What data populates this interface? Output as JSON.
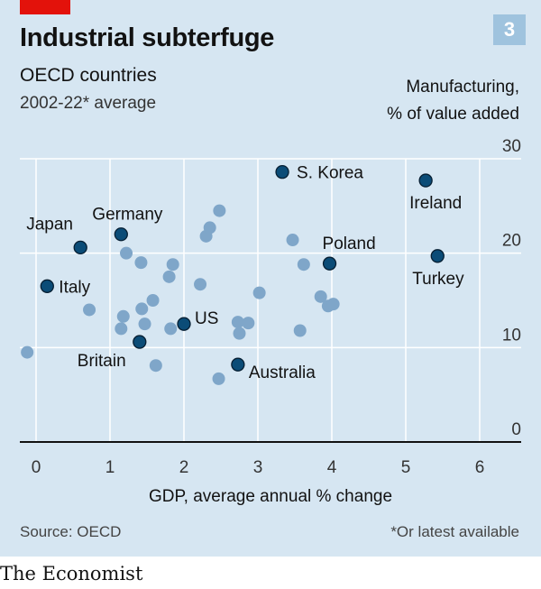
{
  "header": {
    "chart_number": "3",
    "title": "Industrial subterfuge",
    "subtitle": "OECD countries",
    "subtitle2": "2002-22* average"
  },
  "axes": {
    "ylabel_line1": "Manufacturing,",
    "ylabel_line2": "% of value added",
    "xlabel": "GDP, average annual % change"
  },
  "footer": {
    "source": "Source: OECD",
    "footnote": "*Or latest available",
    "brand": "The Economist"
  },
  "colors": {
    "background": "#d6e6f2",
    "highlight": "#0b4c77",
    "other": "#7fa6c9",
    "grid": "#ffffff",
    "accent": "#e3120b"
  },
  "chart_data": {
    "type": "scatter",
    "title": "Industrial subterfuge",
    "subtitle": "OECD countries, 2002-22* average",
    "xlabel": "GDP, average annual % change",
    "ylabel": "Manufacturing, % of value added",
    "xlim": [
      -0.2,
      6.4
    ],
    "ylim": [
      0,
      30
    ],
    "xticks": [
      0,
      1,
      2,
      3,
      4,
      5,
      6
    ],
    "yticks": [
      0,
      10,
      20,
      30
    ],
    "grid": true,
    "highlighted": [
      {
        "label": "S. Korea",
        "x": 3.33,
        "y": 28.6
      },
      {
        "label": "Ireland",
        "x": 5.27,
        "y": 27.7
      },
      {
        "label": "Germany",
        "x": 1.15,
        "y": 22.0
      },
      {
        "label": "Japan",
        "x": 0.6,
        "y": 20.6
      },
      {
        "label": "Poland",
        "x": 3.97,
        "y": 18.9
      },
      {
        "label": "Turkey",
        "x": 5.43,
        "y": 19.7
      },
      {
        "label": "Italy",
        "x": 0.15,
        "y": 16.5
      },
      {
        "label": "US",
        "x": 2.0,
        "y": 12.5
      },
      {
        "label": "Britain",
        "x": 1.4,
        "y": 10.6
      },
      {
        "label": "Australia",
        "x": 2.73,
        "y": 8.2
      }
    ],
    "others": [
      {
        "x": -0.12,
        "y": 9.5
      },
      {
        "x": 0.72,
        "y": 14.0
      },
      {
        "x": 1.22,
        "y": 20.0
      },
      {
        "x": 1.42,
        "y": 19.0
      },
      {
        "x": 1.18,
        "y": 13.3
      },
      {
        "x": 1.15,
        "y": 12.0
      },
      {
        "x": 1.43,
        "y": 14.1
      },
      {
        "x": 1.47,
        "y": 12.5
      },
      {
        "x": 1.58,
        "y": 15.0
      },
      {
        "x": 1.62,
        "y": 8.1
      },
      {
        "x": 1.8,
        "y": 17.5
      },
      {
        "x": 1.85,
        "y": 18.8
      },
      {
        "x": 1.82,
        "y": 12.0
      },
      {
        "x": 2.22,
        "y": 16.7
      },
      {
        "x": 2.3,
        "y": 21.8
      },
      {
        "x": 2.35,
        "y": 22.7
      },
      {
        "x": 2.48,
        "y": 24.5
      },
      {
        "x": 2.47,
        "y": 6.7
      },
      {
        "x": 2.73,
        "y": 12.7
      },
      {
        "x": 2.75,
        "y": 11.5
      },
      {
        "x": 2.87,
        "y": 12.6
      },
      {
        "x": 3.02,
        "y": 15.8
      },
      {
        "x": 3.47,
        "y": 21.4
      },
      {
        "x": 3.57,
        "y": 11.8
      },
      {
        "x": 3.62,
        "y": 18.8
      },
      {
        "x": 3.85,
        "y": 15.4
      },
      {
        "x": 3.95,
        "y": 14.4
      },
      {
        "x": 4.02,
        "y": 14.6
      }
    ]
  }
}
